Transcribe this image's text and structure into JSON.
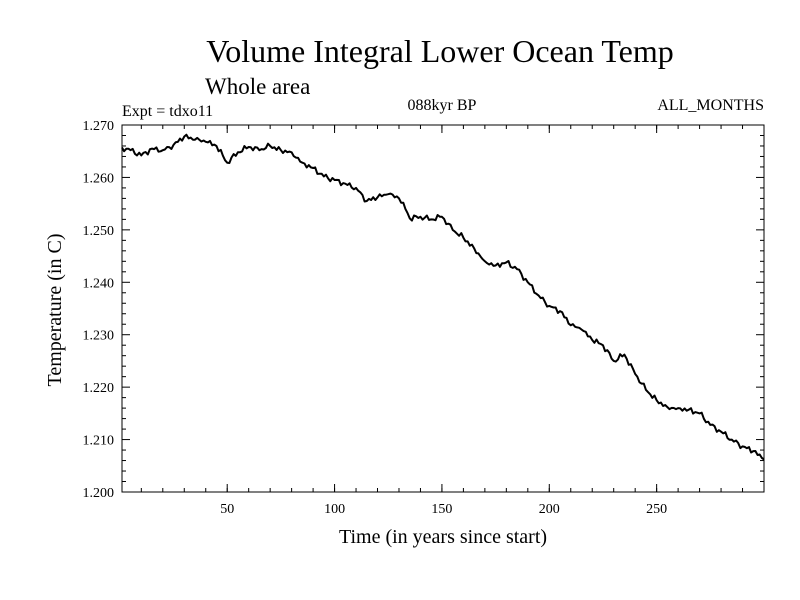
{
  "chart_data": {
    "type": "line",
    "title": "Volume Integral Lower Ocean Temp",
    "subtitle": "Whole area",
    "expt_label": "Expt = tdxo11",
    "period_label": "088kyr BP",
    "months_label": "ALL_MONTHS",
    "xlabel": "Time (in years since start)",
    "ylabel": "Temperature (in C)",
    "xlim": [
      1,
      300
    ],
    "ylim": [
      1.2,
      1.27
    ],
    "xticks": [
      50,
      100,
      150,
      200,
      250
    ],
    "xtick_labels": [
      "50",
      "100",
      "150",
      "200",
      "250"
    ],
    "yticks": [
      1.2,
      1.21,
      1.22,
      1.23,
      1.24,
      1.25,
      1.26,
      1.27
    ],
    "ytick_labels": [
      "1.200",
      "1.210",
      "1.220",
      "1.230",
      "1.240",
      "1.250",
      "1.260",
      "1.270"
    ],
    "series": [
      {
        "name": "tdxo11",
        "color": "#000000",
        "x": [
          1,
          5,
          10,
          15,
          20,
          25,
          30,
          35,
          40,
          45,
          50,
          55,
          60,
          65,
          70,
          75,
          80,
          85,
          90,
          95,
          100,
          105,
          110,
          115,
          120,
          125,
          130,
          133,
          135,
          140,
          145,
          150,
          155,
          160,
          165,
          170,
          175,
          180,
          185,
          190,
          195,
          200,
          205,
          210,
          215,
          220,
          225,
          230,
          235,
          240,
          245,
          250,
          255,
          260,
          265,
          270,
          275,
          280,
          285,
          290,
          295,
          300
        ],
        "y": [
          1.2657,
          1.2652,
          1.2642,
          1.2655,
          1.2652,
          1.2662,
          1.2678,
          1.2672,
          1.2668,
          1.266,
          1.2628,
          1.2648,
          1.2658,
          1.2652,
          1.266,
          1.2652,
          1.2648,
          1.2628,
          1.2618,
          1.2602,
          1.2595,
          1.2588,
          1.258,
          1.2555,
          1.2562,
          1.2568,
          1.256,
          1.254,
          1.2522,
          1.2525,
          1.252,
          1.2525,
          1.25,
          1.2485,
          1.2465,
          1.244,
          1.2432,
          1.2438,
          1.2425,
          1.24,
          1.2375,
          1.2355,
          1.2345,
          1.2318,
          1.231,
          1.229,
          1.228,
          1.225,
          1.2262,
          1.2225,
          1.2195,
          1.2175,
          1.2162,
          1.216,
          1.2157,
          1.215,
          1.2128,
          1.2115,
          1.21,
          1.2087,
          1.2078,
          1.2062
        ]
      }
    ]
  }
}
